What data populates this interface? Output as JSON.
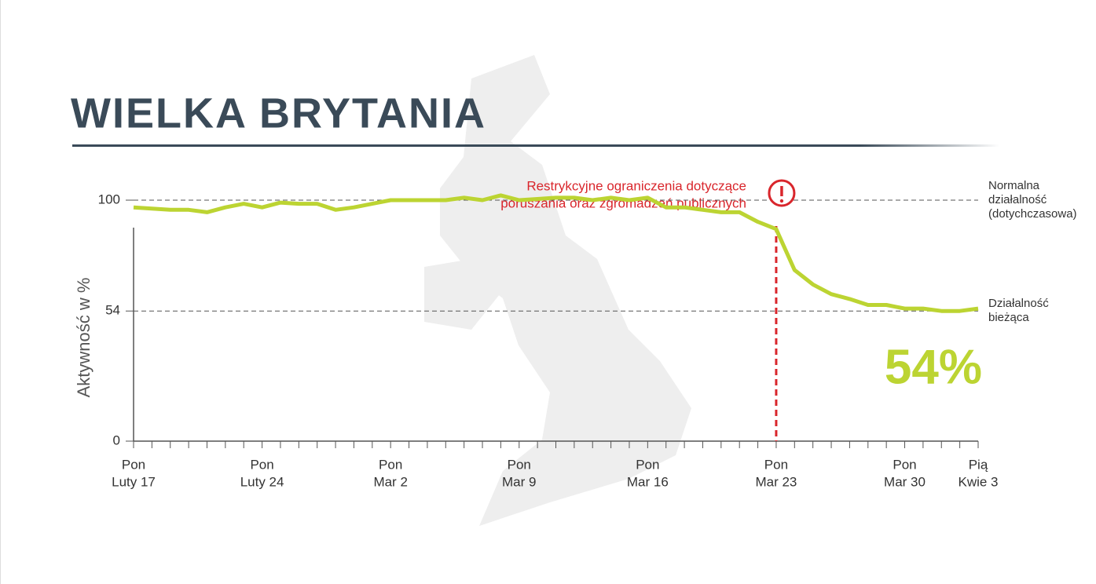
{
  "chart_data": {
    "type": "line",
    "title": "WIELKA BRYTANIA",
    "y_label": "Aktywność w %",
    "category_days": [
      "Pon",
      null,
      null,
      null,
      null,
      null,
      null,
      "Pon",
      null,
      null,
      null,
      null,
      null,
      null,
      "Pon",
      null,
      null,
      null,
      null,
      null,
      null,
      "Pon",
      null,
      null,
      null,
      null,
      null,
      null,
      "Pon",
      null,
      null,
      null,
      null,
      null,
      null,
      "Pon",
      null,
      null,
      null,
      null,
      null,
      null,
      "Pon",
      null,
      null,
      null,
      "Pią"
    ],
    "categories": [
      "Luty 17",
      null,
      null,
      null,
      null,
      null,
      null,
      "Luty 24",
      null,
      null,
      null,
      null,
      null,
      null,
      "Mar 2",
      null,
      null,
      null,
      null,
      null,
      null,
      "Mar 9",
      null,
      null,
      null,
      null,
      null,
      null,
      "Mar 16",
      null,
      null,
      null,
      null,
      null,
      null,
      "Mar 23",
      null,
      null,
      null,
      null,
      null,
      null,
      "Mar 30",
      null,
      null,
      null,
      "Kwie 3"
    ],
    "series": [
      {
        "color": "#bcd432",
        "values": [
          97,
          96.5,
          96,
          96,
          95,
          97,
          98.5,
          97,
          99,
          98.5,
          98.5,
          96,
          97,
          98.5,
          100,
          100,
          100,
          100,
          101,
          100,
          102,
          100,
          100.5,
          101,
          101,
          100,
          101,
          100,
          101,
          97,
          97,
          96,
          95,
          95,
          91,
          88,
          71,
          65,
          61,
          59,
          56.5,
          56.5,
          55,
          55,
          54,
          54,
          55
        ]
      }
    ],
    "ylim": [
      0,
      100
    ],
    "yticks": [
      0,
      54,
      100
    ],
    "grid": true,
    "reference_labels": [
      [
        "Normalna",
        "działalność",
        "(dotychczasowa)"
      ],
      [
        "Działalność",
        "bieżąca"
      ]
    ],
    "event": {
      "category": "Mar 23",
      "color": "#d9262c",
      "text": [
        "Restrykcyjne ograniczenia dotyczące",
        "poruszania oraz zgromadzeń publicznych"
      ]
    },
    "current": {
      "value": 54,
      "label": "54%"
    }
  }
}
